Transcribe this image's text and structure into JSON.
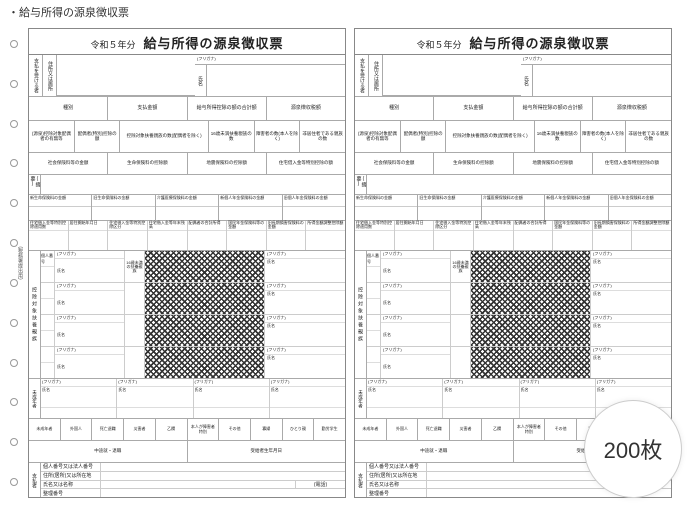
{
  "page_title": "・給与所得の源泉徴収票",
  "badge": "200枚",
  "form": {
    "year": "令和５年分",
    "title": "給与所得の源泉徴収票",
    "payer_label": "支払を受ける者",
    "address_label": "住所又は居所",
    "furigana": "(フリガナ)",
    "name_label": "氏名",
    "amount_headers": [
      "種別",
      "支払金額",
      "給与所得控除の額の合計額",
      "源泉徴収税額"
    ],
    "spouse_headers": [
      "(源泉)控除対象配偶者の有無等",
      "配偶者(特別)控除の額",
      "控除対象扶養親族の数(配偶者を除く)",
      "16歳未満扶養親族の数",
      "障害者の数(本人を除く)",
      "非居住者である親族の数"
    ],
    "spouse_sub": [
      "老人",
      "特定",
      "老人",
      "その他",
      "特別",
      "その他"
    ],
    "insurance_headers": [
      "社会保険料等の金額",
      "生命保険料の控除額",
      "地震保険料の控除額",
      "住宅借入金等特別控除の額"
    ],
    "summary_label": "(摘要)",
    "ins_detail": [
      "新生命保険料の金額",
      "旧生命保険料の金額",
      "介護医療保険料の金額",
      "新個人年金保険料の金額",
      "旧個人年金保険料の金額"
    ],
    "pre_dep_labels": [
      "住宅借入金等特別控除適用数",
      "居住開始年月日",
      "住宅借入金等特別控除区分",
      "住宅借入金等年末残高",
      "配偶者の合計所得",
      "国民年金保険料等の金額",
      "旧長期損害保険料の金額",
      "所得金額調整控除額"
    ],
    "dep_side": "控除対象扶養親族",
    "dep_furi": "(フリガナ)",
    "dep_name": "氏名",
    "dep_num": "個人番号",
    "dep_mid": "16歳未満の扶養親族",
    "minor_side": "未成年者",
    "checks": [
      "未成年者",
      "外国人",
      "死亡退職",
      "災害者",
      "乙欄",
      "本人が障害者 特別",
      "その他",
      "寡婦",
      "ひとり親",
      "勤労学生"
    ],
    "midretire": [
      "中途就・退職",
      "受給者生年月日"
    ],
    "payer_side": "支払者",
    "payer_rows": [
      "個人番号又は法人番号",
      "住所(居所)又は所在地",
      "氏名又は名称",
      "整理番号"
    ],
    "tel": "(電話)",
    "side_micro_left": "(税務署提出用)",
    "side_micro_right": "(受給者交付用)"
  }
}
